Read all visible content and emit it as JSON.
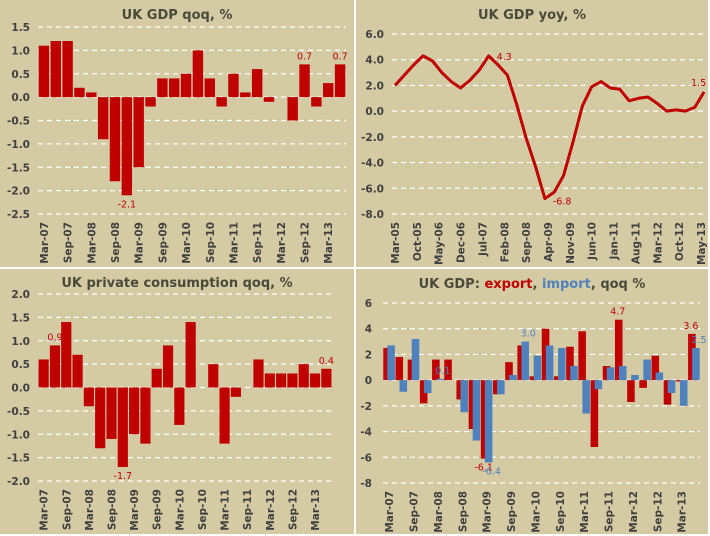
{
  "colors": {
    "background": "#d4cba4",
    "bar_red": "#c00000",
    "bar_blue": "#4f81bd",
    "line_red": "#c00000",
    "label_red": "#c00000",
    "label_blue": "#4f81bd",
    "title": "#4a4a3a",
    "grid": "#ffffff"
  },
  "chart_data": [
    {
      "id": "gdp-qoq",
      "type": "bar",
      "title": "UK GDP qoq, %",
      "xlabel": "",
      "ylabel": "",
      "ylim": [
        -2.5,
        1.5
      ],
      "yticks": [
        "1.5",
        "1.0",
        "0.5",
        "0.0",
        "-0.5",
        "-1.0",
        "-1.5",
        "-2.0",
        "-2.5"
      ],
      "ytick_values": [
        1.5,
        1.0,
        0.5,
        0.0,
        -0.5,
        -1.0,
        -1.5,
        -2.0,
        -2.5
      ],
      "grid": true,
      "categories": [
        "Mar-07",
        "Jun-07",
        "Sep-07",
        "Dec-07",
        "Mar-08",
        "Jun-08",
        "Sep-08",
        "Dec-08",
        "Mar-09",
        "Jun-09",
        "Sep-09",
        "Dec-09",
        "Mar-10",
        "Jun-10",
        "Sep-10",
        "Dec-10",
        "Mar-11",
        "Jun-11",
        "Sep-11",
        "Dec-11",
        "Mar-12",
        "Jun-12",
        "Sep-12",
        "Dec-12",
        "Mar-13",
        "Jun-13"
      ],
      "xtick_labels": [
        "Mar-07",
        "Sep-07",
        "Mar-08",
        "Sep-08",
        "Mar-09",
        "Sep-09",
        "Mar-10",
        "Sep-10",
        "Mar-11",
        "Sep-11",
        "Mar-12",
        "Sep-12",
        "Mar-13"
      ],
      "values": [
        1.1,
        1.2,
        1.2,
        0.2,
        0.1,
        -0.9,
        -1.8,
        -2.1,
        -1.5,
        -0.2,
        0.4,
        0.4,
        0.5,
        1.0,
        0.4,
        -0.2,
        0.5,
        0.1,
        0.6,
        -0.1,
        0.0,
        -0.5,
        0.7,
        -0.2,
        0.3,
        0.7
      ],
      "annotations": [
        {
          "index": 7,
          "text": "-2.1",
          "position": "below"
        },
        {
          "index": 22,
          "text": "0.7",
          "position": "above"
        },
        {
          "index": 25,
          "text": "0.7",
          "position": "above"
        }
      ]
    },
    {
      "id": "gdp-yoy",
      "type": "line",
      "title": "UK GDP yoy, %",
      "xlabel": "",
      "ylabel": "",
      "ylim": [
        -8.0,
        6.0
      ],
      "yticks": [
        "6.0",
        "4.0",
        "2.0",
        "0.0",
        "-2.0",
        "-4.0",
        "-6.0",
        "-8.0"
      ],
      "ytick_values": [
        6,
        4,
        2,
        0,
        -2,
        -4,
        -6,
        -8
      ],
      "grid": true,
      "x_range_months": [
        "Mar-05",
        "May-13"
      ],
      "xtick_labels": [
        "Mar-05",
        "Oct-05",
        "May-06",
        "Dec-06",
        "Jul-07",
        "Feb-08",
        "Sep-08",
        "Apr-09",
        "Nov-09",
        "Jun-10",
        "Jan-11",
        "Aug-11",
        "Mar-12",
        "Oct-12",
        "May-13"
      ],
      "x": [
        "Mar-05",
        "Jun-05",
        "Sep-05",
        "Dec-05",
        "Mar-06",
        "Jun-06",
        "Sep-06",
        "Dec-06",
        "Mar-07",
        "Jun-07",
        "Sep-07",
        "Dec-07",
        "Mar-08",
        "Jun-08",
        "Sep-08",
        "Dec-08",
        "Mar-09",
        "Jun-09",
        "Sep-09",
        "Dec-09",
        "Mar-10",
        "Jun-10",
        "Sep-10",
        "Dec-10",
        "Mar-11",
        "Jun-11",
        "Sep-11",
        "Dec-11",
        "Mar-12",
        "Jun-12",
        "Sep-12",
        "Dec-12",
        "Mar-13",
        "Jun-13"
      ],
      "x_month_offsets": [
        0,
        3,
        6,
        9,
        12,
        15,
        18,
        21,
        24,
        27,
        30,
        33,
        36,
        39,
        42,
        45,
        48,
        51,
        54,
        57,
        60,
        63,
        66,
        69,
        72,
        75,
        78,
        81,
        84,
        87,
        90,
        93,
        96,
        99
      ],
      "series": [
        {
          "name": "UK GDP yoy",
          "values": [
            2.0,
            2.8,
            3.6,
            4.3,
            3.9,
            3.0,
            2.3,
            1.8,
            2.4,
            3.2,
            4.3,
            3.6,
            2.8,
            0.5,
            -2.1,
            -4.3,
            -6.8,
            -6.3,
            -5.0,
            -2.4,
            0.4,
            1.9,
            2.3,
            1.8,
            1.7,
            0.8,
            1.0,
            1.1,
            0.6,
            0.0,
            0.1,
            0.0,
            0.3,
            1.5
          ]
        }
      ],
      "annotations": [
        {
          "index": 10,
          "text": "4.3",
          "position": "right"
        },
        {
          "index": 16,
          "text": "-6.8",
          "position": "right"
        },
        {
          "index": 33,
          "text": "1.5",
          "position": "above"
        }
      ]
    },
    {
      "id": "consumption-qoq",
      "type": "bar",
      "title": "UK private consumption qoq, %",
      "xlabel": "",
      "ylabel": "",
      "ylim": [
        -2.0,
        2.0
      ],
      "yticks": [
        "2.0",
        "1.5",
        "1.0",
        "0.5",
        "0.0",
        "-0.5",
        "-1.0",
        "-1.5",
        "-2.0"
      ],
      "ytick_values": [
        2.0,
        1.5,
        1.0,
        0.5,
        0.0,
        -0.5,
        -1.0,
        -1.5,
        -2.0
      ],
      "grid": true,
      "categories": [
        "Mar-07",
        "Jun-07",
        "Sep-07",
        "Dec-07",
        "Mar-08",
        "Jun-08",
        "Sep-08",
        "Dec-08",
        "Mar-09",
        "Jun-09",
        "Sep-09",
        "Dec-09",
        "Mar-10",
        "Jun-10",
        "Sep-10",
        "Dec-10",
        "Mar-11",
        "Jun-11",
        "Sep-11",
        "Dec-11",
        "Mar-12",
        "Jun-12",
        "Sep-12",
        "Dec-12",
        "Mar-13",
        "Jun-13"
      ],
      "xtick_labels": [
        "Mar-07",
        "Sep-07",
        "Mar-08",
        "Sep-08",
        "Mar-09",
        "Sep-09",
        "Mar-10",
        "Sep-10",
        "Mar-11",
        "Sep-11",
        "Mar-12",
        "Sep-12",
        "Mar-13"
      ],
      "values": [
        0.6,
        0.9,
        1.4,
        0.7,
        -0.4,
        -1.3,
        -1.1,
        -1.7,
        -1.0,
        -1.2,
        0.4,
        0.9,
        -0.8,
        1.4,
        0.0,
        0.5,
        -1.2,
        -0.2,
        0.0,
        0.6,
        0.3,
        0.3,
        0.3,
        0.5,
        0.3,
        0.4
      ],
      "annotations": [
        {
          "index": 1,
          "text": "0.9",
          "position": "above"
        },
        {
          "index": 7,
          "text": "-1.7",
          "position": "below"
        },
        {
          "index": 25,
          "text": "0.4",
          "position": "above"
        }
      ]
    },
    {
      "id": "export-import-qoq",
      "type": "bar",
      "title_parts": [
        {
          "text": "UK GDP: ",
          "color": "#4a4a3a"
        },
        {
          "text": "export",
          "color": "#c00000"
        },
        {
          "text": ", ",
          "color": "#4a4a3a"
        },
        {
          "text": "import",
          "color": "#4f81bd"
        },
        {
          "text": ", qoq %",
          "color": "#4a4a3a"
        }
      ],
      "title": "UK GDP: export, import, qoq %",
      "xlabel": "",
      "ylabel": "",
      "ylim": [
        -8,
        6
      ],
      "yticks": [
        "6",
        "4",
        "2",
        "0",
        "-2",
        "-4",
        "-6",
        "-8"
      ],
      "ytick_values": [
        6,
        4,
        2,
        0,
        -2,
        -4,
        -6,
        -8
      ],
      "grid": true,
      "legend": "in title",
      "categories": [
        "Mar-07",
        "Jun-07",
        "Sep-07",
        "Dec-07",
        "Mar-08",
        "Jun-08",
        "Sep-08",
        "Dec-08",
        "Mar-09",
        "Jun-09",
        "Sep-09",
        "Dec-09",
        "Mar-10",
        "Jun-10",
        "Sep-10",
        "Dec-10",
        "Mar-11",
        "Jun-11",
        "Sep-11",
        "Dec-11",
        "Mar-12",
        "Jun-12",
        "Sep-12",
        "Dec-12",
        "Mar-13",
        "Jun-13"
      ],
      "xtick_labels": [
        "Mar-07",
        "Sep-07",
        "Mar-08",
        "Sep-08",
        "Mar-09",
        "Sep-09",
        "Mar-10",
        "Sep-10",
        "Mar-11",
        "Sep-11",
        "Mar-12",
        "Sep-12",
        "Mar-13"
      ],
      "series": [
        {
          "name": "export",
          "color": "#c00000",
          "values": [
            2.5,
            1.8,
            1.6,
            -1.8,
            1.6,
            1.6,
            -1.5,
            -3.8,
            -6.1,
            -1.1,
            1.4,
            2.7,
            0.3,
            4.0,
            0.3,
            2.6,
            3.8,
            -5.2,
            1.1,
            4.7,
            -1.7,
            -0.6,
            1.9,
            -1.9,
            -0.1,
            3.6
          ]
        },
        {
          "name": "import",
          "color": "#4f81bd",
          "values": [
            2.7,
            -0.9,
            3.2,
            -1.0,
            0.1,
            0.0,
            -2.5,
            -4.7,
            -6.4,
            -1.1,
            0.4,
            3.0,
            1.9,
            2.7,
            2.5,
            1.1,
            -2.6,
            -0.7,
            1.0,
            1.1,
            0.4,
            1.6,
            0.6,
            -1.0,
            -2.0,
            2.5
          ]
        }
      ],
      "annotations": [
        {
          "series": "import",
          "index": 4,
          "text": "0.1",
          "position": "above"
        },
        {
          "series": "export",
          "index": 8,
          "text": "-6.1",
          "position": "below"
        },
        {
          "series": "import",
          "index": 8,
          "text": "-6.4",
          "position": "below"
        },
        {
          "series": "import",
          "index": 11,
          "text": "3.0",
          "position": "above"
        },
        {
          "series": "export",
          "index": 19,
          "text": "4.7",
          "position": "above"
        },
        {
          "series": "export",
          "index": 25,
          "text": "3.6",
          "position": "above"
        },
        {
          "series": "import",
          "index": 25,
          "text": "2.5",
          "position": "above"
        }
      ]
    }
  ]
}
